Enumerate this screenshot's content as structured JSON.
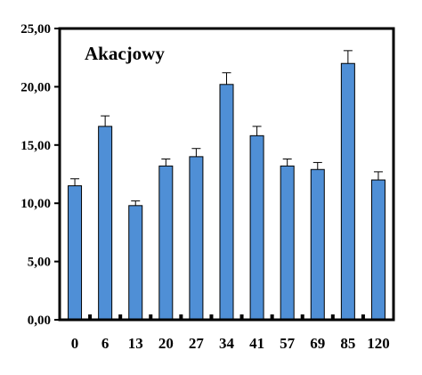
{
  "chart_data": {
    "type": "bar",
    "title": "Akacjowy",
    "xlabel": "",
    "ylabel": "",
    "categories": [
      "0",
      "6",
      "13",
      "20",
      "27",
      "34",
      "41",
      "57",
      "69",
      "85",
      "120"
    ],
    "values": [
      11.5,
      16.6,
      9.8,
      13.2,
      14.0,
      20.2,
      15.8,
      13.2,
      12.9,
      22.0,
      12.0
    ],
    "errors": [
      0.6,
      0.9,
      0.4,
      0.6,
      0.7,
      1.0,
      0.8,
      0.6,
      0.6,
      1.1,
      0.7
    ],
    "ylim": [
      0,
      25
    ],
    "yticks": [
      "0,00",
      "5,00",
      "10,00",
      "15,00",
      "20,00",
      "25,00"
    ],
    "bar_color": "#4f8fd6",
    "bar_stroke": "#000000",
    "grid": false,
    "legend": "none"
  }
}
